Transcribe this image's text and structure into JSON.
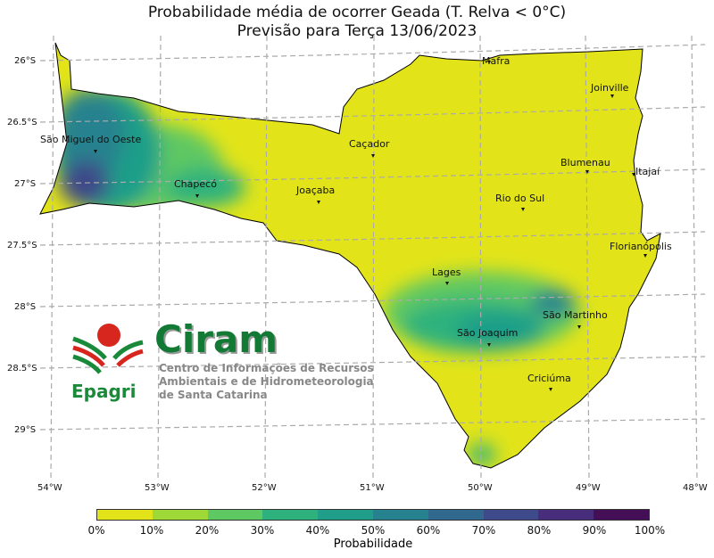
{
  "title": "Probabilidade média de ocorrer Geada (T. Relva < 0°C)",
  "subtitle": "Previsão para Terça 13/06/2023",
  "lat_labels": [
    "26°S",
    "26.5°S",
    "27°S",
    "27.5°S",
    "28°S",
    "28.5°S",
    "29°S"
  ],
  "lon_labels": [
    "54°W",
    "53°W",
    "52°W",
    "51°W",
    "50°W",
    "49°W",
    "48°W"
  ],
  "cities": [
    "Mafra",
    "Joinville",
    "São Miguel do Oeste",
    "Caçador",
    "Blumenau",
    "Itajaí",
    "Chapecó",
    "Joaçaba",
    "Rio do Sul",
    "Florianópolis",
    "Lages",
    "São Martinho",
    "São Joaquim",
    "Criciúma"
  ],
  "colorbar": {
    "label": "Probabilidade",
    "ticks": [
      "0%",
      "10%",
      "20%",
      "30%",
      "40%",
      "50%",
      "60%",
      "70%",
      "80%",
      "90%",
      "100%"
    ],
    "colors": [
      "#e2e419",
      "#9fd938",
      "#5ec862",
      "#2db27d",
      "#1f9e89",
      "#26828e",
      "#31688e",
      "#3e4a89",
      "#472d7b",
      "#440f56"
    ]
  },
  "logo": {
    "brand": "Ciram",
    "org": "Epagri",
    "lines": [
      "Centro de Informações de Recursos",
      "Ambientais e de Hidrometeorologia",
      "de Santa Catarina"
    ]
  }
}
